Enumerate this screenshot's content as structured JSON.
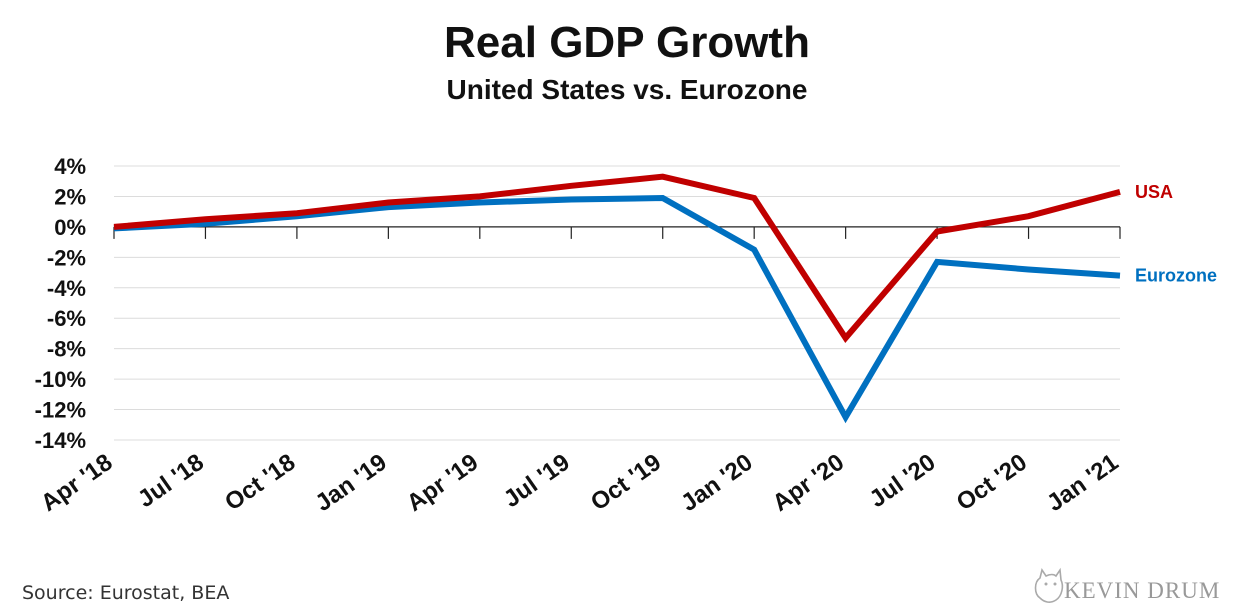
{
  "chart_data": {
    "type": "line",
    "title": "Real GDP Growth",
    "subtitle": "United States vs. Eurozone",
    "categories": [
      "Apr '18",
      "Jul '18",
      "Oct '18",
      "Jan '19",
      "Apr '19",
      "Jul '19",
      "Oct '19",
      "Jan '20",
      "Apr '20",
      "Jul '20",
      "Oct '20",
      "Jan '21"
    ],
    "series": [
      {
        "name": "USA",
        "color": "#c00000",
        "values": [
          0.0,
          0.5,
          0.9,
          1.6,
          2.0,
          2.7,
          3.3,
          1.9,
          -7.3,
          -0.3,
          0.7,
          2.3
        ]
      },
      {
        "name": "Eurozone",
        "color": "#0070c0",
        "values": [
          -0.1,
          0.2,
          0.7,
          1.3,
          1.6,
          1.8,
          1.9,
          -1.5,
          -12.5,
          -2.3,
          -2.8,
          -3.2
        ]
      }
    ],
    "ylim": [
      -14,
      4
    ],
    "yticks": [
      "4%",
      "2%",
      "0%",
      "-2%",
      "-4%",
      "-6%",
      "-8%",
      "-10%",
      "-12%",
      "-14%"
    ],
    "grid": true,
    "source": "Source: Eurostat, BEA",
    "logo": "KEVIN DRUM"
  }
}
